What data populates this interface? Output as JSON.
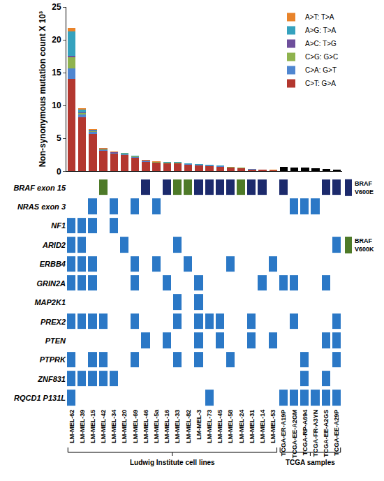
{
  "chart_data": [
    {
      "type": "bar",
      "stacked": true,
      "y_label": "Non-synonymous mutation count X 10³",
      "categories": [
        "LM-MEL-62",
        "LM-MEL-39",
        "LM-MEL-15",
        "LM-MEL-42",
        "LM-MEL-34",
        "LM-MEL-20",
        "LM-MEL-69",
        "LM-MEL-46",
        "LM-MEL-5a",
        "LM-MEL-16",
        "LM-MEL-33",
        "LM-MEL-82",
        "LM-MEL-3",
        "LM-MEL-73",
        "LM-MEL-45",
        "LM-MEL-58",
        "LM-MEL-24",
        "LM-MEL-31",
        "LM-MEL-14",
        "LM-MEL-53",
        "TCGA-ER-A19P",
        "TCGA-EE-A2GM",
        "TCGA-RP-A694",
        "TCGA-FR-A3YN",
        "TCGA-EE-A2GS",
        "TCGA-EE-A29P"
      ],
      "series": [
        {
          "name": "C>T: G>A",
          "color": "#b3372f",
          "values": [
            14.1,
            8.2,
            5.7,
            3.1,
            2.7,
            2.5,
            2.1,
            1.4,
            1.3,
            1.2,
            1.2,
            1.0,
            0.9,
            0.8,
            0.7,
            0.55,
            0.45,
            0.3,
            0.2,
            0.12,
            null,
            null,
            null,
            null,
            null,
            null
          ]
        },
        {
          "name": "C>A: G>T",
          "color": "#4f86d0",
          "values": [
            1.5,
            0.4,
            0.3,
            0.15,
            0.1,
            0.1,
            0.1,
            0.1,
            0.05,
            0.05,
            0.05,
            0.05,
            0.05,
            0.05,
            0.05,
            0.04,
            0.04,
            0.03,
            0.03,
            0.02,
            null,
            null,
            null,
            null,
            null,
            null
          ]
        },
        {
          "name": "C>G: G>C",
          "color": "#8fb34e",
          "values": [
            1.8,
            0.3,
            0.1,
            0.1,
            0.05,
            0.05,
            0.05,
            0.05,
            0.05,
            0.05,
            0.05,
            0.05,
            0.05,
            0.05,
            0.05,
            0.04,
            0.04,
            0.03,
            0.03,
            0.02,
            null,
            null,
            null,
            null,
            null,
            null
          ]
        },
        {
          "name": "A>C: T>G",
          "color": "#6e4f9c",
          "values": [
            0.2,
            0.1,
            0.05,
            0.05,
            0.05,
            0.05,
            0.05,
            0.05,
            0.03,
            0.03,
            0.03,
            0.03,
            0.03,
            0.03,
            0.03,
            0.02,
            0.02,
            0.01,
            0.01,
            0.01,
            null,
            null,
            null,
            null,
            null,
            null
          ]
        },
        {
          "name": "A>G: T>A",
          "color": "#35a2be",
          "values": [
            3.7,
            0.4,
            0.2,
            0.05,
            0.05,
            0.05,
            0.05,
            0.05,
            0.04,
            0.04,
            0.04,
            0.04,
            0.04,
            0.04,
            0.04,
            0.03,
            0.03,
            0.02,
            0.02,
            0.02,
            null,
            null,
            null,
            null,
            null,
            null
          ]
        },
        {
          "name": "A>T: T>A",
          "color": "#e8832a",
          "values": [
            0.5,
            0.2,
            0.05,
            0.05,
            0.05,
            0.05,
            0.05,
            0.05,
            0.03,
            0.03,
            0.03,
            0.03,
            0.03,
            0.03,
            0.03,
            0.02,
            0.02,
            0.01,
            0.01,
            0.01,
            null,
            null,
            null,
            null,
            null,
            null
          ]
        },
        {
          "color": "#000000",
          "values": [
            null,
            null,
            null,
            null,
            null,
            null,
            null,
            null,
            null,
            null,
            null,
            null,
            null,
            null,
            null,
            null,
            null,
            null,
            null,
            null,
            0.7,
            0.6,
            0.55,
            0.5,
            0.35,
            0.3
          ]
        }
      ],
      "ylim": [
        0,
        25
      ],
      "yticks": [
        0,
        5,
        10,
        15,
        20,
        25
      ],
      "grid": false,
      "legend": "upper right",
      "tick_labels": "y"
    },
    {
      "type": "oncoprint",
      "categories": [
        "LM-MEL-62",
        "LM-MEL-39",
        "LM-MEL-15",
        "LM-MEL-42",
        "LM-MEL-34",
        "LM-MEL-20",
        "LM-MEL-69",
        "LM-MEL-46",
        "LM-MEL-5a",
        "LM-MEL-16",
        "LM-MEL-33",
        "LM-MEL-82",
        "LM-MEL-3",
        "LM-MEL-73",
        "LM-MEL-45",
        "LM-MEL-58",
        "LM-MEL-24",
        "LM-MEL-31",
        "LM-MEL-14",
        "LM-MEL-53",
        "TCGA-ER-A19P",
        "TCGA-EE-A2GM",
        "TCGA-RP-A694",
        "TCGA-FR-A3YN",
        "TCGA-EE-A2GS",
        "TCGA-EE-A29P"
      ],
      "color": "#2b78c6",
      "series": [
        {
          "name": "BRAF V600E",
          "color": "#1c2a6c"
        },
        {
          "name": "BRAF V600K",
          "color": "#4e7a28"
        }
      ],
      "rows": [
        {
          "gene": "BRAF exon 15",
          "mutated": [
            "LM-MEL-42",
            "LM-MEL-46",
            "LM-MEL-16",
            "LM-MEL-33",
            "LM-MEL-82",
            "LM-MEL-3",
            "LM-MEL-73",
            "LM-MEL-45",
            "LM-MEL-58",
            "LM-MEL-24",
            "LM-MEL-31",
            "LM-MEL-14",
            "TCGA-ER-A19P",
            "TCGA-EE-A2GS",
            "TCGA-EE-A29P"
          ],
          "variants": [
            "BRAF V600K",
            "BRAF V600E",
            "BRAF V600E",
            "BRAF V600K",
            "BRAF V600K",
            "BRAF V600E",
            "BRAF V600E",
            "BRAF V600E",
            "BRAF V600E",
            "BRAF V600K",
            "BRAF V600E",
            "BRAF V600E",
            "BRAF V600E",
            "BRAF V600E",
            "BRAF V600E"
          ]
        },
        {
          "gene": "NRAS exon 3",
          "mutated": [
            "LM-MEL-15",
            "LM-MEL-34",
            "LM-MEL-69",
            "LM-MEL-5a",
            "TCGA-EE-A2GM",
            "TCGA-RP-A694",
            "TCGA-FR-A3YN"
          ]
        },
        {
          "gene": "NF1",
          "mutated": [
            "LM-MEL-62",
            "LM-MEL-39",
            "LM-MEL-15",
            "LM-MEL-34"
          ]
        },
        {
          "gene": "ARID2",
          "mutated": [
            "LM-MEL-62",
            "LM-MEL-39",
            "LM-MEL-20",
            "LM-MEL-33",
            "TCGA-EE-A29P"
          ]
        },
        {
          "gene": "ERBB4",
          "mutated": [
            "LM-MEL-62",
            "LM-MEL-39",
            "LM-MEL-15",
            "LM-MEL-69",
            "LM-MEL-5a",
            "LM-MEL-82",
            "LM-MEL-58",
            "LM-MEL-53"
          ]
        },
        {
          "gene": "GRIN2A",
          "mutated": [
            "LM-MEL-62",
            "LM-MEL-39",
            "LM-MEL-15",
            "LM-MEL-69",
            "LM-MEL-16",
            "LM-MEL-3",
            "LM-MEL-14",
            "TCGA-ER-A19P",
            "TCGA-EE-A2GM",
            "TCGA-EE-A2GS"
          ]
        },
        {
          "gene": "MAP2K1",
          "mutated": [
            "LM-MEL-33",
            "LM-MEL-3"
          ]
        },
        {
          "gene": "PREX2",
          "mutated": [
            "LM-MEL-62",
            "LM-MEL-39",
            "LM-MEL-15",
            "LM-MEL-42",
            "LM-MEL-69",
            "LM-MEL-33",
            "LM-MEL-3",
            "LM-MEL-73",
            "LM-MEL-45",
            "LM-MEL-31",
            "TCGA-EE-A2GM",
            "TCGA-EE-A29P"
          ]
        },
        {
          "gene": "PTEN",
          "mutated": [
            "LM-MEL-46",
            "LM-MEL-16",
            "LM-MEL-3",
            "LM-MEL-45",
            "LM-MEL-31",
            "LM-MEL-53",
            "TCGA-EE-A2GS",
            "TCGA-EE-A29P"
          ]
        },
        {
          "gene": "PTPRK",
          "mutated": [
            "LM-MEL-62",
            "LM-MEL-15",
            "LM-MEL-42",
            "LM-MEL-69",
            "LM-MEL-33",
            "LM-MEL-3",
            "LM-MEL-58",
            "TCGA-RP-A694",
            "TCGA-EE-A29P"
          ]
        },
        {
          "gene": "ZNF831",
          "mutated": [
            "LM-MEL-62",
            "LM-MEL-39",
            "LM-MEL-15",
            "LM-MEL-42",
            "LM-MEL-34",
            "TCGA-RP-A694",
            "TCGA-EE-A2GS"
          ]
        },
        {
          "gene": "RQCD1 P131L",
          "mutated": [
            "LM-MEL-62",
            "LM-MEL-73",
            "TCGA-ER-A19P",
            "TCGA-EE-A2GM",
            "TCGA-RP-A694",
            "TCGA-FR-A3YN",
            "TCGA-EE-A2GS",
            "TCGA-EE-A29P"
          ]
        }
      ],
      "groups": [
        {
          "label": "Ludwig Institute cell lines",
          "first": "LM-MEL-62",
          "last": "LM-MEL-53"
        },
        {
          "label": "TCGA samples",
          "first": "TCGA-ER-A19P",
          "last": "TCGA-EE-A29P"
        }
      ]
    }
  ]
}
